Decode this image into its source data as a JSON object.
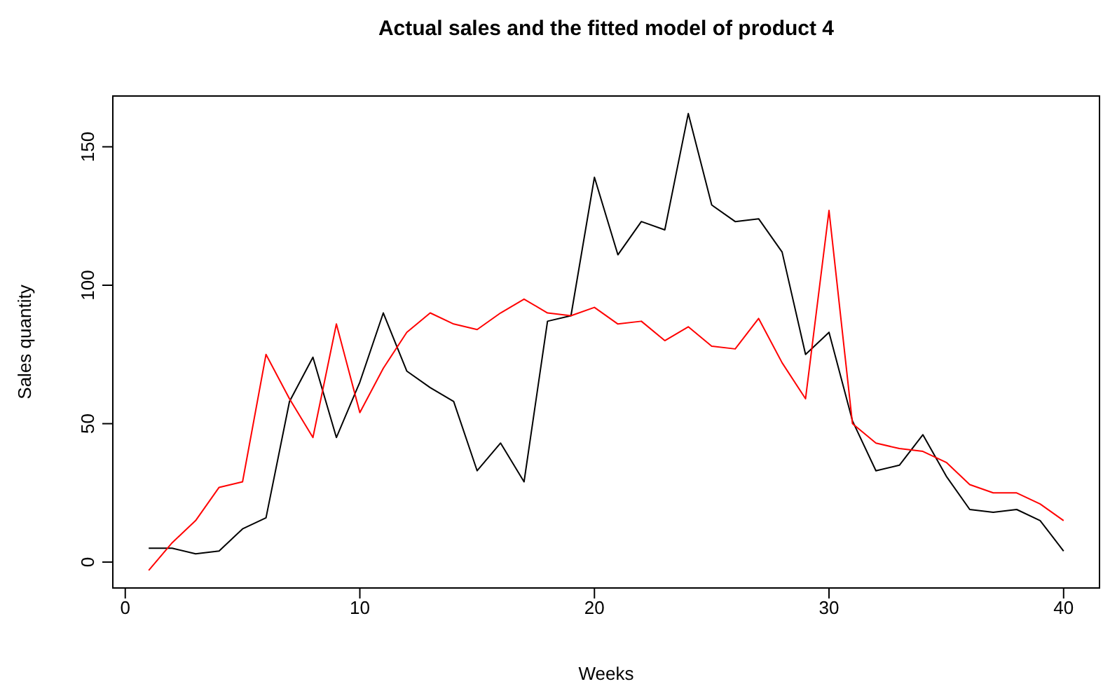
{
  "chart_data": {
    "type": "line",
    "title": "Actual sales and the fitted model of product 4",
    "xlabel": "Weeks",
    "ylabel": "Sales quantity",
    "x": [
      1,
      2,
      3,
      4,
      5,
      6,
      7,
      8,
      9,
      10,
      11,
      12,
      13,
      14,
      15,
      16,
      17,
      18,
      19,
      20,
      21,
      22,
      23,
      24,
      25,
      26,
      27,
      28,
      29,
      30,
      31,
      32,
      33,
      34,
      35,
      36,
      37,
      38,
      39,
      40
    ],
    "series": [
      {
        "color": "#000000",
        "values": [
          5,
          5,
          3,
          4,
          12,
          16,
          58,
          74,
          45,
          65,
          90,
          69,
          63,
          58,
          33,
          43,
          29,
          87,
          89,
          139,
          111,
          123,
          120,
          162,
          129,
          123,
          124,
          112,
          75,
          83,
          51,
          33,
          35,
          46,
          31,
          19,
          18,
          19,
          15,
          4
        ]
      },
      {
        "color": "#ff0000",
        "values": [
          -3,
          7,
          15,
          27,
          29,
          75,
          59,
          45,
          86,
          54,
          70,
          83,
          90,
          86,
          84,
          90,
          95,
          90,
          89,
          92,
          86,
          87,
          80,
          85,
          78,
          77,
          88,
          72,
          59,
          127,
          50,
          43,
          41,
          40,
          36,
          28,
          25,
          25,
          21,
          15
        ]
      }
    ],
    "xlim": [
      -0.56,
      41.56
    ],
    "xticks": [
      0,
      10,
      20,
      30,
      40
    ],
    "ylim": [
      -9.6,
      168.6
    ],
    "yticks": [
      0,
      50,
      100,
      150
    ],
    "grid": false,
    "legend": false,
    "marker": "none",
    "line_style": "solid"
  }
}
